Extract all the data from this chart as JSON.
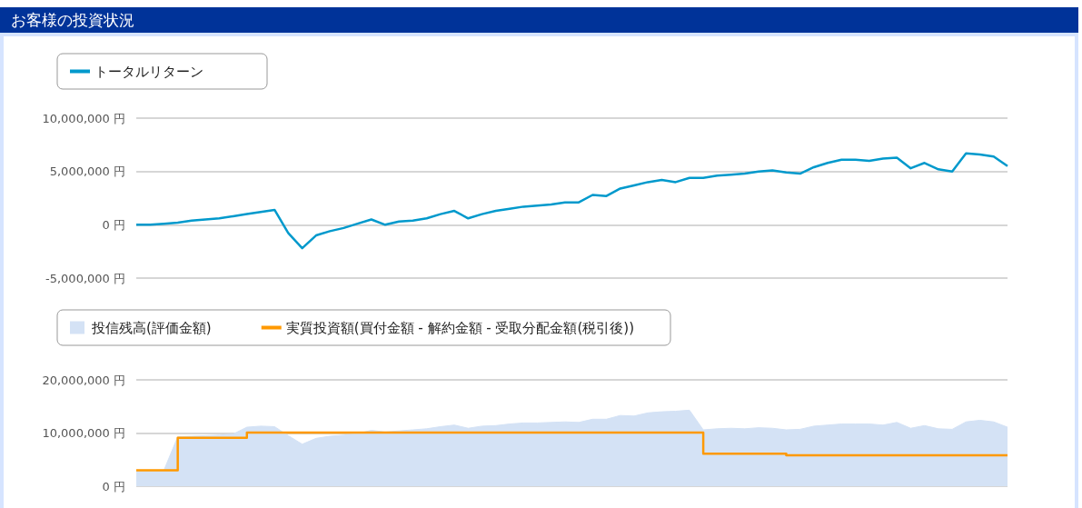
{
  "chart_data": [
    {
      "type": "line",
      "title": "お客様の投資状況",
      "categories": [
        null,
        null,
        null,
        null,
        null,
        null,
        null,
        null,
        null,
        null,
        null,
        null,
        null,
        null,
        null,
        null,
        null,
        null,
        null,
        null,
        null,
        null,
        null,
        null,
        null,
        null,
        null,
        null,
        null,
        null,
        null,
        null,
        null,
        null,
        null,
        null,
        null,
        null,
        null,
        null,
        null,
        null,
        null,
        null,
        null,
        null,
        null,
        null,
        null,
        null,
        null,
        null,
        null,
        null,
        null,
        null,
        null,
        null,
        null,
        null,
        null,
        null,
        null,
        null
      ],
      "series": [
        {
          "name": "トータルリターン",
          "color": "#0099cc",
          "values": [
            0,
            0,
            100000,
            200000,
            400000,
            500000,
            600000,
            800000,
            1000000,
            1200000,
            1400000,
            -800000,
            -2200000,
            -1000000,
            -600000,
            -300000,
            100000,
            500000,
            0,
            300000,
            400000,
            600000,
            1000000,
            1300000,
            600000,
            1000000,
            1300000,
            1500000,
            1700000,
            1800000,
            1900000,
            2100000,
            2100000,
            2800000,
            2700000,
            3400000,
            3700000,
            4000000,
            4200000,
            4000000,
            4400000,
            4400000,
            4600000,
            4700000,
            4800000,
            5000000,
            5100000,
            4900000,
            4800000,
            5400000,
            5800000,
            6100000,
            6100000,
            6000000,
            6200000,
            6300000,
            5300000,
            5800000,
            5200000,
            5000000,
            6700000,
            6600000,
            6400000,
            5500000
          ]
        }
      ],
      "ylim": [
        -5000000,
        10000000
      ],
      "yticks": [
        {
          "value": -5000000,
          "label": "-5,000,000 円"
        },
        {
          "value": 0,
          "label": "0 円"
        },
        {
          "value": 5000000,
          "label": "5,000,000 円"
        },
        {
          "value": 10000000,
          "label": "10,000,000 円"
        }
      ],
      "grid": "y",
      "legend": "top left",
      "tick_labels": "y"
    },
    {
      "type": "area",
      "categories": [
        null,
        null,
        null,
        null,
        null,
        null,
        null,
        null,
        null,
        null,
        null,
        null,
        null,
        null,
        null,
        null,
        null,
        null,
        null,
        null,
        null,
        null,
        null,
        null,
        null,
        null,
        null,
        null,
        null,
        null,
        null,
        null,
        null,
        null,
        null,
        null,
        null,
        null,
        null,
        null,
        null,
        null,
        null,
        null,
        null,
        null,
        null,
        null,
        null,
        null,
        null,
        null,
        null,
        null,
        null,
        null,
        null,
        null,
        null,
        null,
        null,
        null,
        null,
        null
      ],
      "series": [
        {
          "name": "投信残高(評価金額)",
          "type": "area",
          "color": "#d4e2f5",
          "values": [
            3000000,
            3000000,
            3000000,
            9300000,
            9400000,
            9500000,
            9600000,
            9800000,
            11100000,
            11300000,
            11200000,
            9500000,
            7900000,
            9000000,
            9400000,
            9600000,
            9900000,
            10500000,
            10200000,
            10400000,
            10600000,
            10800000,
            11200000,
            11500000,
            10900000,
            11300000,
            11400000,
            11700000,
            11900000,
            11900000,
            12000000,
            12100000,
            12000000,
            12600000,
            12600000,
            13300000,
            13200000,
            13800000,
            14000000,
            14100000,
            14300000,
            10600000,
            10800000,
            10900000,
            10800000,
            11000000,
            10900000,
            10600000,
            10700000,
            11300000,
            11500000,
            11700000,
            11700000,
            11700000,
            11500000,
            12000000,
            10900000,
            11400000,
            10800000,
            10700000,
            12100000,
            12400000,
            12100000,
            11100000
          ]
        },
        {
          "name": "実質投資額(買付金額 - 解約金額 - 受取分配金額(税引後))",
          "type": "step",
          "color": "#ff9900",
          "values": [
            3000000,
            3000000,
            3000000,
            9100000,
            9100000,
            9100000,
            9100000,
            9100000,
            10100000,
            10100000,
            10100000,
            10100000,
            10100000,
            10100000,
            10100000,
            10100000,
            10100000,
            10100000,
            10100000,
            10100000,
            10100000,
            10100000,
            10100000,
            10100000,
            10100000,
            10100000,
            10100000,
            10100000,
            10100000,
            10100000,
            10100000,
            10100000,
            10100000,
            10100000,
            10100000,
            10100000,
            10100000,
            10100000,
            10100000,
            10100000,
            10100000,
            6100000,
            6100000,
            6100000,
            6100000,
            6100000,
            6100000,
            5800000,
            5800000,
            5800000,
            5800000,
            5800000,
            5800000,
            5800000,
            5800000,
            5800000,
            5800000,
            5800000,
            5800000,
            5800000,
            5800000,
            5800000,
            5800000,
            5800000
          ]
        }
      ],
      "ylim": [
        0,
        20000000
      ],
      "yticks": [
        {
          "value": 0,
          "label": "0 円"
        },
        {
          "value": 10000000,
          "label": "10,000,000 円"
        },
        {
          "value": 20000000,
          "label": "20,000,000 円"
        }
      ],
      "grid": "y",
      "legend": "top left",
      "tick_labels": "y"
    }
  ]
}
